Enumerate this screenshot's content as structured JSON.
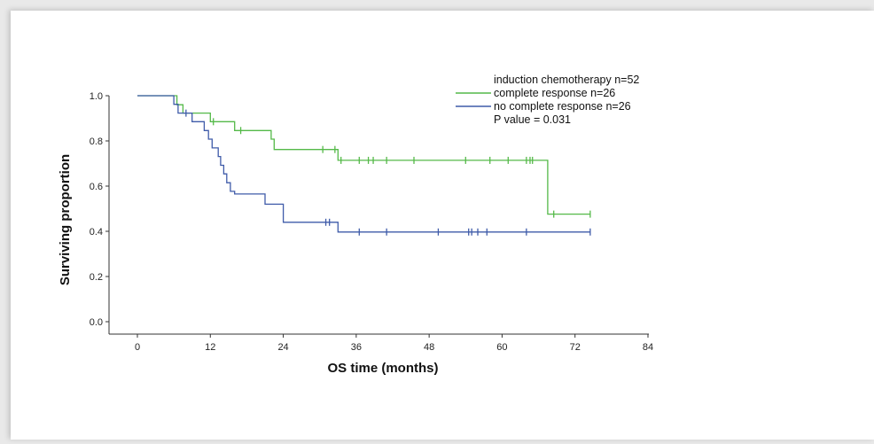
{
  "chart_data": {
    "type": "line",
    "title": "",
    "xlabel": "OS time (months)",
    "ylabel": "Surviving proportion",
    "xlim": [
      0,
      84
    ],
    "ylim": [
      0,
      1
    ],
    "x_ticks": [
      "0",
      "12",
      "24",
      "36",
      "48",
      "60",
      "72",
      "84"
    ],
    "y_ticks": [
      "0.0",
      "0.2",
      "0.4",
      "0.6",
      "0.8",
      "1.0"
    ],
    "grid": false,
    "legend_position": "top-right",
    "legend": {
      "header": "induction chemotherapy n=52",
      "entries": [
        "complete response n=26",
        "no complete response n=26"
      ],
      "footer": "P value = 0.031"
    },
    "series": [
      {
        "name": "complete response n=26",
        "color": "#54b948",
        "steps": [
          [
            0,
            1.0
          ],
          [
            6.5,
            1.0
          ],
          [
            6.5,
            0.96
          ],
          [
            7.5,
            0.96
          ],
          [
            7.5,
            0.923
          ],
          [
            12,
            0.923
          ],
          [
            12,
            0.885
          ],
          [
            16,
            0.885
          ],
          [
            16,
            0.846
          ],
          [
            22,
            0.846
          ],
          [
            22,
            0.808
          ],
          [
            22.5,
            0.808
          ],
          [
            22.5,
            0.762
          ],
          [
            33,
            0.762
          ],
          [
            33,
            0.714
          ],
          [
            67.5,
            0.714
          ],
          [
            67.5,
            0.476
          ],
          [
            74.5,
            0.476
          ]
        ],
        "censored": [
          [
            12.5,
            0.885
          ],
          [
            17,
            0.846
          ],
          [
            30.5,
            0.762
          ],
          [
            32.5,
            0.762
          ],
          [
            33.5,
            0.714
          ],
          [
            36.5,
            0.714
          ],
          [
            38,
            0.714
          ],
          [
            38.8,
            0.714
          ],
          [
            41,
            0.714
          ],
          [
            45.5,
            0.714
          ],
          [
            54,
            0.714
          ],
          [
            58,
            0.714
          ],
          [
            61,
            0.714
          ],
          [
            64,
            0.714
          ],
          [
            64.6,
            0.714
          ],
          [
            65,
            0.714
          ],
          [
            68.5,
            0.476
          ],
          [
            74.5,
            0.476
          ]
        ]
      },
      {
        "name": "no complete response n=26",
        "color": "#3f5ba9",
        "steps": [
          [
            0,
            1.0
          ],
          [
            6,
            1.0
          ],
          [
            6,
            0.962
          ],
          [
            6.7,
            0.962
          ],
          [
            6.7,
            0.923
          ],
          [
            9,
            0.923
          ],
          [
            9,
            0.885
          ],
          [
            11,
            0.885
          ],
          [
            11,
            0.846
          ],
          [
            11.7,
            0.846
          ],
          [
            11.7,
            0.808
          ],
          [
            12.3,
            0.808
          ],
          [
            12.3,
            0.769
          ],
          [
            13.3,
            0.769
          ],
          [
            13.3,
            0.731
          ],
          [
            13.7,
            0.731
          ],
          [
            13.7,
            0.692
          ],
          [
            14.2,
            0.692
          ],
          [
            14.2,
            0.654
          ],
          [
            14.7,
            0.654
          ],
          [
            14.7,
            0.615
          ],
          [
            15.3,
            0.615
          ],
          [
            15.3,
            0.577
          ],
          [
            16,
            0.577
          ],
          [
            16,
            0.565
          ],
          [
            21,
            0.565
          ],
          [
            21,
            0.52
          ],
          [
            24,
            0.52
          ],
          [
            24,
            0.44
          ],
          [
            33,
            0.44
          ],
          [
            33,
            0.397
          ],
          [
            74.5,
            0.397
          ]
        ],
        "censored": [
          [
            8,
            0.923
          ],
          [
            31,
            0.44
          ],
          [
            31.6,
            0.44
          ],
          [
            36.5,
            0.397
          ],
          [
            41,
            0.397
          ],
          [
            49.5,
            0.397
          ],
          [
            54.5,
            0.397
          ],
          [
            55,
            0.397
          ],
          [
            56,
            0.397
          ],
          [
            57.5,
            0.397
          ],
          [
            64,
            0.397
          ],
          [
            74.5,
            0.397
          ]
        ]
      }
    ]
  }
}
